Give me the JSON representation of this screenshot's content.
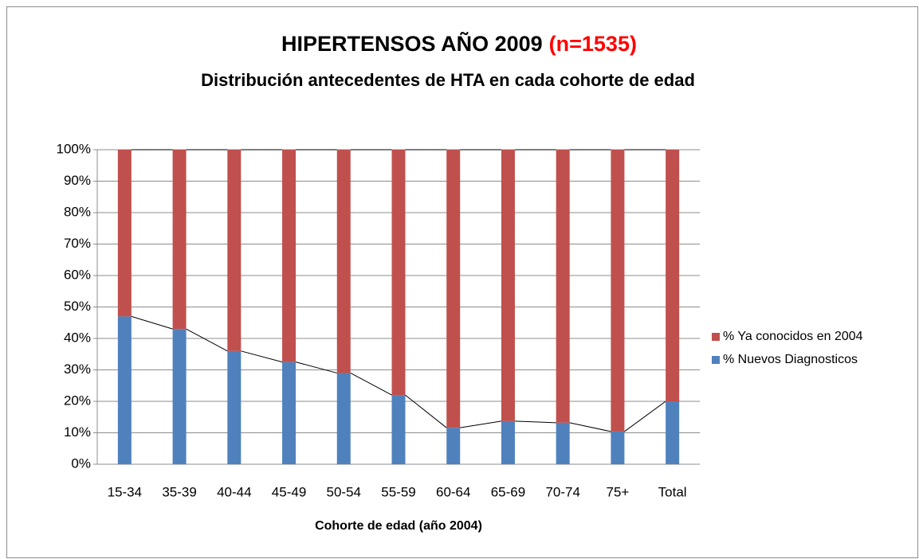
{
  "chart_data": {
    "type": "stacked_bar",
    "title": "HIPERTENSOS AÑO 2009",
    "title_note": "(n=1535)",
    "subtitle": "Distribución  antecedentes de HTA en cada cohorte de edad",
    "x_label": "Cohorte de edad (año 2004)",
    "categories": [
      "15-34",
      "35-39",
      "40-44",
      "45-49",
      "50-54",
      "55-59",
      "60-64",
      "65-69",
      "70-74",
      "75+",
      "Total"
    ],
    "series": [
      {
        "name": "% Nuevos Diagnosticos",
        "color": "#4f81bd",
        "values": [
          47,
          43,
          36,
          32.5,
          29,
          22,
          11.6,
          13.7,
          13.2,
          10.4,
          20
        ]
      },
      {
        "name": "% Ya conocidos en 2004",
        "color": "#c0504d",
        "values": [
          53,
          57,
          64,
          67.5,
          71,
          78,
          88.4,
          86.3,
          86.8,
          89.6,
          80
        ]
      }
    ],
    "ylim": [
      0,
      100
    ],
    "yticks": [
      {
        "value": 0,
        "label": "0%"
      },
      {
        "value": 10,
        "label": "10%"
      },
      {
        "value": 20,
        "label": "20%"
      },
      {
        "value": 30,
        "label": "30%"
      },
      {
        "value": 40,
        "label": "40%"
      },
      {
        "value": 50,
        "label": "50%"
      },
      {
        "value": 60,
        "label": "60%"
      },
      {
        "value": 70,
        "label": "70%"
      },
      {
        "value": 80,
        "label": "80%"
      },
      {
        "value": 90,
        "label": "90%"
      },
      {
        "value": 100,
        "label": "100%"
      }
    ],
    "grid": true,
    "series_lines": true,
    "legend": "right"
  }
}
